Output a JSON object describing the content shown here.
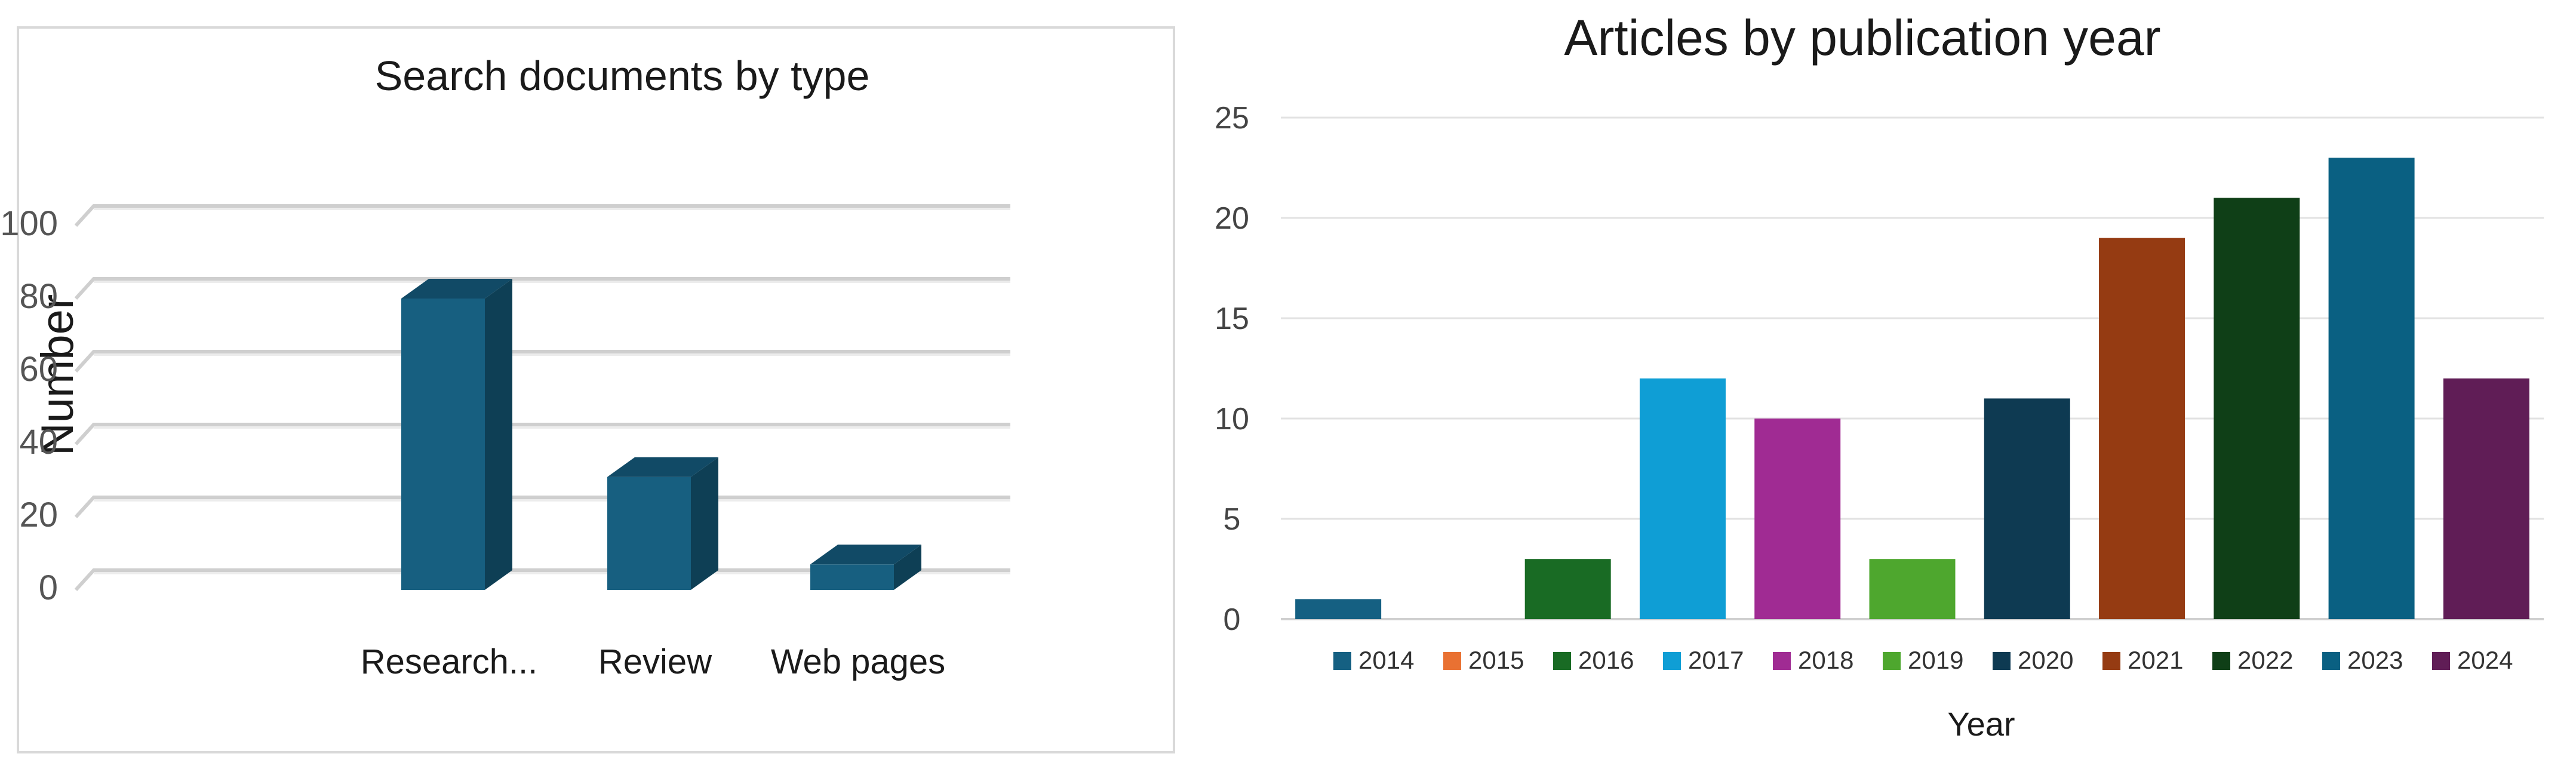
{
  "chart_data": [
    {
      "type": "bar",
      "style": "3d-column",
      "title": "Search documents by type",
      "ylabel": "Number",
      "xlabel": "",
      "categories": [
        "Research...",
        "Review",
        "Web pages"
      ],
      "values": [
        80,
        31,
        7
      ],
      "ylim": [
        0,
        100
      ],
      "yticks": [
        0,
        20,
        40,
        60,
        80,
        100
      ],
      "grid": true,
      "legend": "none",
      "colors": {
        "front": "#175f80",
        "side": "#0e3f55",
        "top": "#114a66"
      }
    },
    {
      "type": "bar",
      "title": "Articles by publication year",
      "xlabel": "Year",
      "ylabel": "",
      "categories": [
        "2014",
        "2015",
        "2016",
        "2017",
        "2018",
        "2019",
        "2020",
        "2021",
        "2022",
        "2023",
        "2024"
      ],
      "values": [
        1,
        0,
        3,
        12,
        10,
        3,
        11,
        19,
        21,
        23,
        12
      ],
      "colors": [
        "#156082",
        "#e97132",
        "#196b24",
        "#0f9ed5",
        "#a02b93",
        "#4ea72e",
        "#0e3a52",
        "#953b12",
        "#0f3f17",
        "#0a6082",
        "#601d56"
      ],
      "ylim": [
        0,
        25
      ],
      "yticks": [
        0,
        5,
        10,
        15,
        20,
        25
      ],
      "grid": true,
      "legend": "bottom"
    }
  ]
}
